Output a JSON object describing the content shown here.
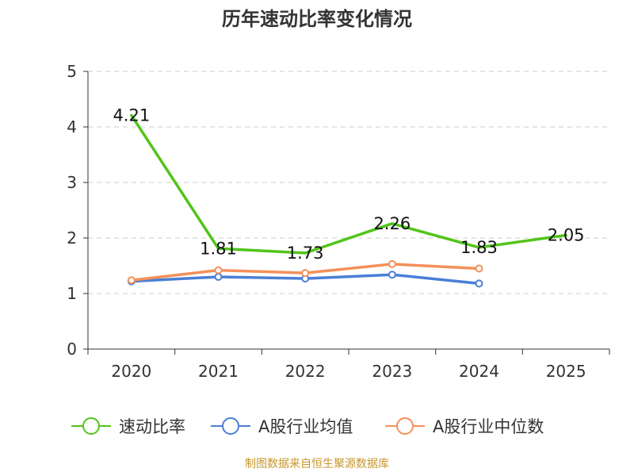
{
  "chart_data": {
    "type": "line",
    "title": "历年速动比率变化情况",
    "categories": [
      "2020",
      "2021",
      "2022",
      "2023",
      "2024",
      "2025"
    ],
    "ylim": [
      0,
      5
    ],
    "yticks": [
      0,
      1,
      2,
      3,
      4,
      5
    ],
    "grid": true,
    "legend_position": "bottom",
    "series": [
      {
        "name": "速动比率",
        "color": "#52c41a",
        "values": [
          4.21,
          1.81,
          1.73,
          2.26,
          1.83,
          2.05
        ],
        "labels": [
          "4.21",
          "1.81",
          "1.73",
          "2.26",
          "1.83",
          "2.05"
        ]
      },
      {
        "name": "A股行业均值",
        "color": "#4a7fd6",
        "values": [
          1.22,
          1.3,
          1.27,
          1.34,
          1.18,
          null
        ]
      },
      {
        "name": "A股行业中位数",
        "color": "#f5905a",
        "values": [
          1.24,
          1.42,
          1.37,
          1.53,
          1.45,
          null
        ]
      }
    ]
  },
  "source_note": "制图数据来自恒生聚源数据库",
  "colors": {
    "axis": "#333333",
    "grid": "#cccccc",
    "source_note": "#c8962a"
  }
}
